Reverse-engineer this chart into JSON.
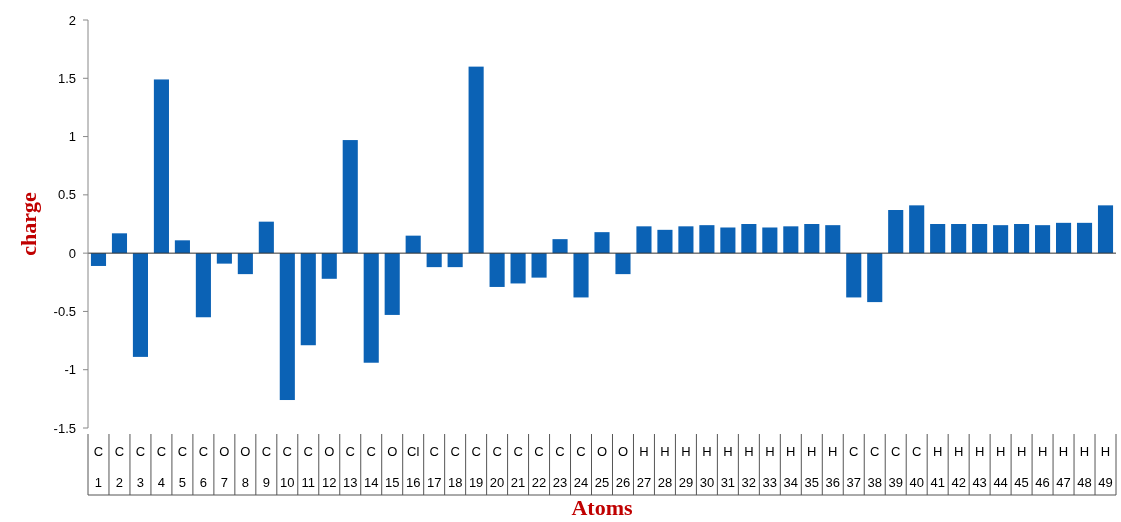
{
  "chart_data": {
    "type": "bar",
    "xlabel": "Atoms",
    "ylabel": "charge",
    "categories": [
      "C\n1",
      "C\n2",
      "C\n3",
      "C\n4",
      "C\n5",
      "C\n6",
      "O\n7",
      "O\n8",
      "C\n9",
      "C\n10",
      "C\n11",
      "O\n12",
      "C\n13",
      "C\n14",
      "O\n15",
      "Cl\n16",
      "C\n17",
      "C\n18",
      "C\n19",
      "C\n20",
      "C\n21",
      "C\n22",
      "C\n23",
      "C\n24",
      "O\n25",
      "O\n26",
      "H\n27",
      "H\n28",
      "H\n29",
      "H\n30",
      "H\n31",
      "H\n32",
      "H\n33",
      "H\n34",
      "H\n35",
      "H\n36",
      "C\n37",
      "C\n38",
      "C\n39",
      "C\n40",
      "H\n41",
      "H\n42",
      "H\n43",
      "H\n44",
      "H\n45",
      "H\n46",
      "H\n47",
      "H\n48",
      "H\n49"
    ],
    "values": [
      -0.11,
      0.17,
      -0.89,
      1.49,
      0.11,
      -0.55,
      -0.09,
      -0.18,
      0.27,
      -1.26,
      -0.79,
      -0.22,
      0.97,
      -0.94,
      -0.53,
      0.15,
      -0.12,
      -0.12,
      1.6,
      -0.29,
      -0.26,
      -0.21,
      0.12,
      -0.38,
      0.18,
      -0.18,
      0.23,
      0.2,
      0.23,
      0.24,
      0.22,
      0.25,
      0.22,
      0.23,
      0.25,
      0.24,
      -0.38,
      -0.42,
      0.37,
      0.41,
      0.25,
      0.25,
      0.25,
      0.24,
      0.25,
      0.24,
      0.26,
      0.26,
      0.41
    ],
    "color": "#0b62b5",
    "ylim": [
      -1.5,
      2
    ],
    "yticks": [
      -1.5,
      -1,
      -0.5,
      0,
      0.5,
      1,
      1.5,
      2
    ]
  }
}
